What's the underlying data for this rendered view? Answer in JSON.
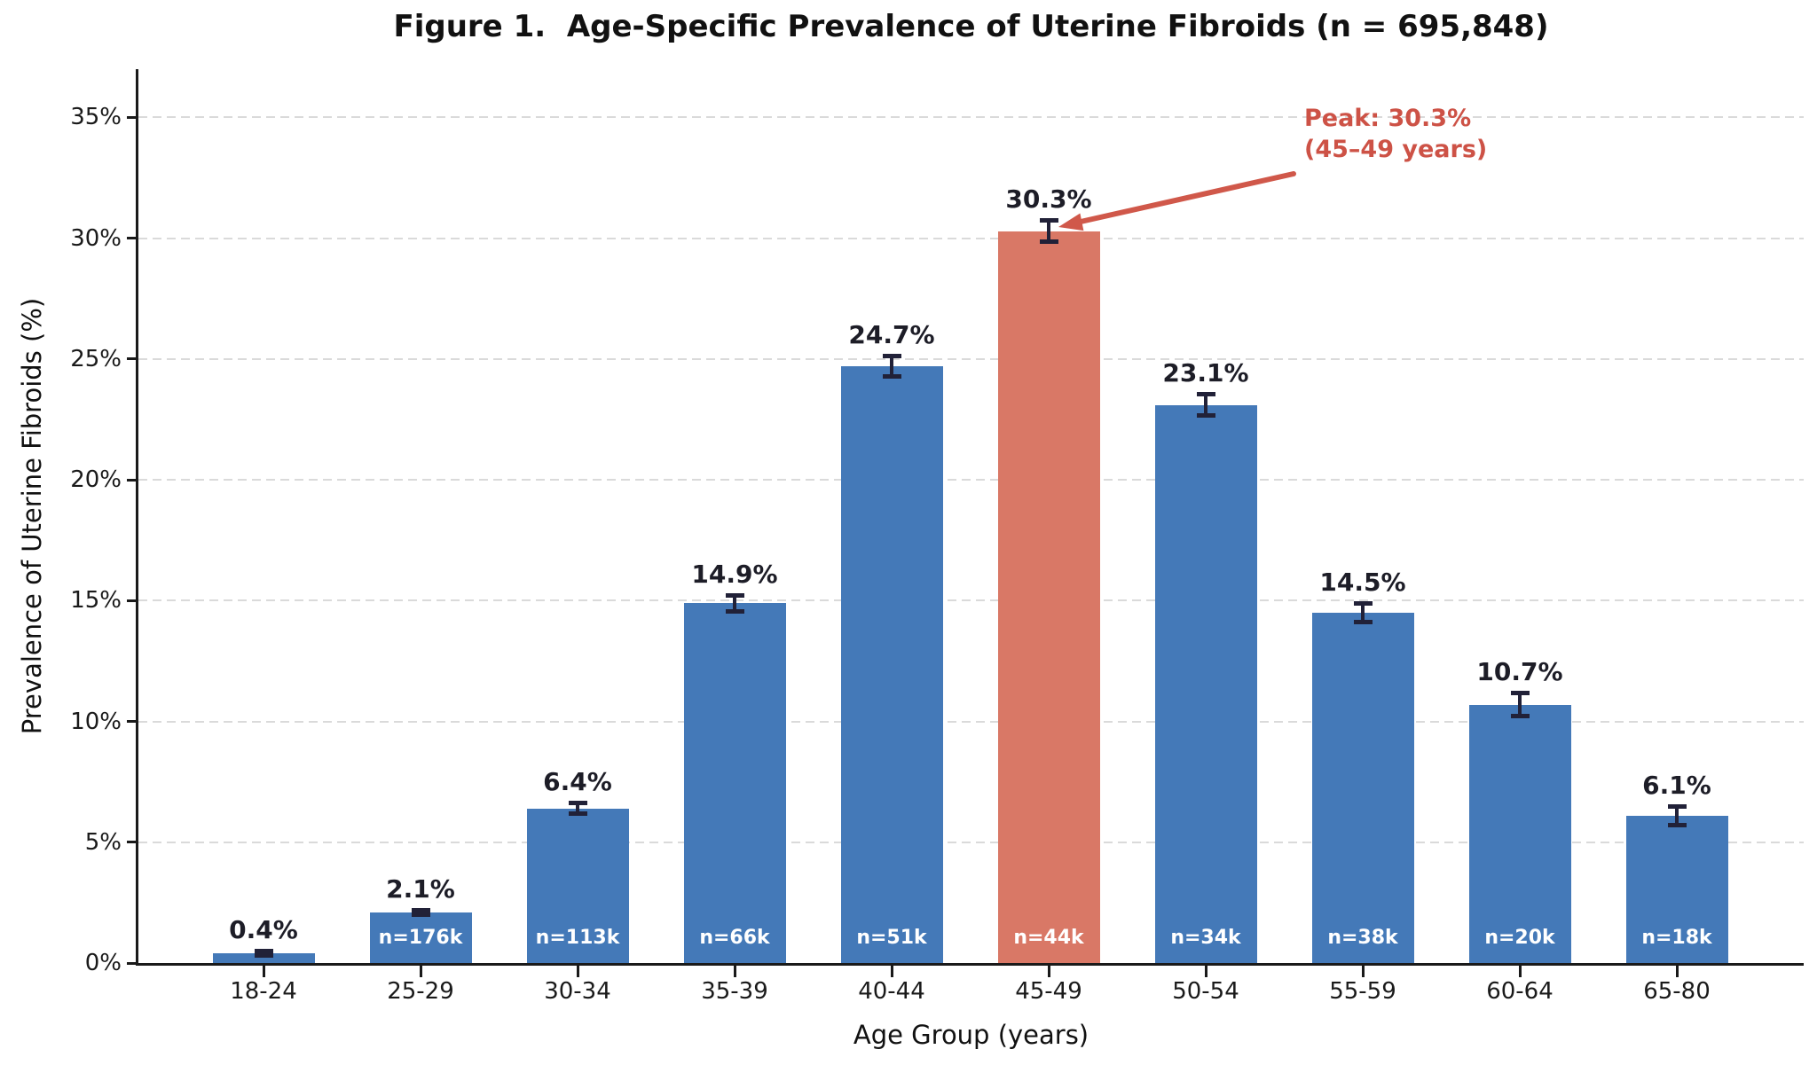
{
  "figure": {
    "title": "Figure 1.  Age-Specific Prevalence of Uterine Fibroids (n = 695,848)"
  },
  "chart_data": {
    "type": "bar",
    "title": "Figure 1.  Age-Specific Prevalence of Uterine Fibroids (n = 695,848)",
    "xlabel": "Age Group (years)",
    "ylabel": "Prevalence of Uterine Fibroids (%)",
    "categories": [
      "18-24",
      "25-29",
      "30-34",
      "35-39",
      "40-44",
      "45-49",
      "50-54",
      "55-59",
      "60-64",
      "65-80"
    ],
    "values": [
      0.4,
      2.1,
      6.4,
      14.9,
      24.7,
      30.3,
      23.1,
      14.5,
      10.7,
      6.1
    ],
    "value_labels": [
      "0.4%",
      "2.1%",
      "6.4%",
      "14.9%",
      "24.7%",
      "30.3%",
      "23.1%",
      "14.5%",
      "10.7%",
      "6.1%"
    ],
    "errors_estimated": [
      0.1,
      0.12,
      0.25,
      0.35,
      0.45,
      0.45,
      0.45,
      0.4,
      0.5,
      0.4
    ],
    "n_labels": [
      "",
      "n=176k",
      "n=113k",
      "n=66k",
      "n=51k",
      "n=44k",
      "n=34k",
      "n=38k",
      "n=20k",
      "n=18k"
    ],
    "highlight_index": 5,
    "ytick_values": [
      0,
      5,
      10,
      15,
      20,
      25,
      30,
      35
    ],
    "ytick_labels": [
      "0%",
      "5%",
      "10%",
      "15%",
      "20%",
      "25%",
      "30%",
      "35%"
    ],
    "ylim": [
      0,
      37
    ],
    "grid": "horizontal-dashed",
    "legend": "none",
    "annotation": {
      "line1": "Peak: 30.3%",
      "line2": "(45–49 years)",
      "points_to": "top of 45-49 bar"
    },
    "colors": {
      "bar": "#4479b8",
      "highlight_bar": "#d97866",
      "error_bar": "#212138",
      "annotation_text": "#cd5246",
      "annotation_arrow": "#d0584a",
      "grid_line": "#dadada",
      "axis": "#1a1a1a",
      "n_label_text": "#ffffff",
      "value_label_text": "#1d1d27"
    }
  }
}
